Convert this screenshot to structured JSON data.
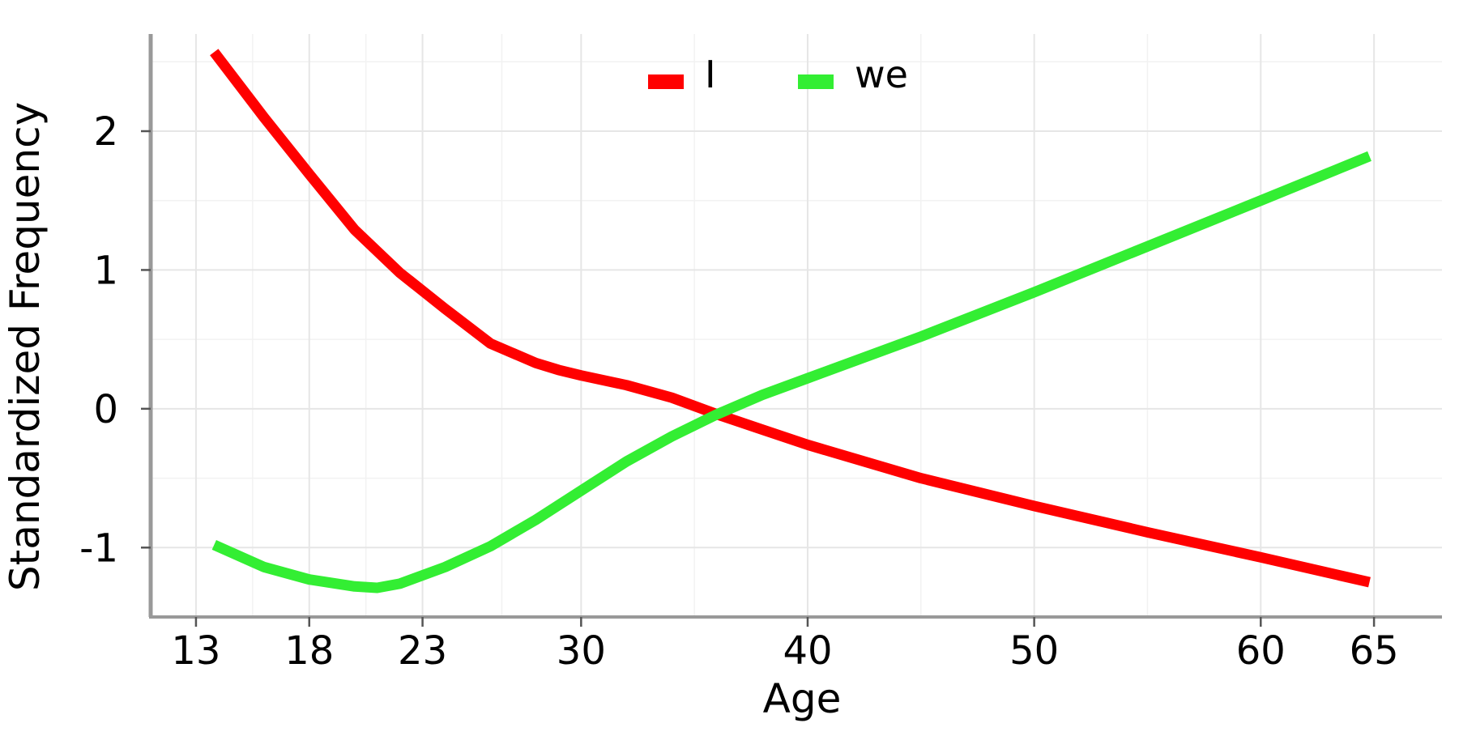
{
  "chart_data": {
    "type": "line",
    "title": "",
    "xlabel": "Age",
    "ylabel": "Standardized Frequency",
    "xlim": [
      11,
      68
    ],
    "ylim": [
      -1.5,
      2.7
    ],
    "x_ticks": [
      13,
      18,
      23,
      30,
      40,
      50,
      60,
      65
    ],
    "x_tick_labels": [
      "13",
      "18",
      "23",
      "30",
      "40",
      "50",
      "60",
      "65"
    ],
    "y_ticks": [
      2,
      1,
      0,
      -1
    ],
    "y_tick_labels": [
      "2",
      "1",
      "0",
      "-1"
    ],
    "x_minor_grid": [
      15.5,
      20.5,
      26.5,
      35,
      45,
      55
    ],
    "y_minor_grid": [
      2.5,
      1.5,
      0.5,
      -0.5
    ],
    "grid": true,
    "legend_position": "top-center",
    "series": [
      {
        "name": "I",
        "color": "#ff0000",
        "x": [
          13.8,
          16,
          18,
          20,
          22,
          24,
          26,
          28,
          29,
          30,
          32,
          34,
          36,
          38,
          40,
          45,
          50,
          55,
          60,
          64.8
        ],
        "y": [
          2.57,
          2.1,
          1.69,
          1.29,
          0.98,
          0.72,
          0.47,
          0.33,
          0.28,
          0.24,
          0.17,
          0.08,
          -0.04,
          -0.15,
          -0.26,
          -0.5,
          -0.7,
          -0.89,
          -1.07,
          -1.25
        ]
      },
      {
        "name": "we",
        "color": "#33ee33",
        "x": [
          13.8,
          16,
          18,
          20,
          21,
          22,
          24,
          26,
          28,
          30,
          32,
          34,
          36,
          38,
          40,
          45,
          50,
          55,
          60,
          64.8
        ],
        "y": [
          -0.98,
          -1.14,
          -1.23,
          -1.28,
          -1.29,
          -1.26,
          -1.14,
          -0.99,
          -0.8,
          -0.59,
          -0.38,
          -0.2,
          -0.04,
          0.1,
          0.22,
          0.52,
          0.84,
          1.17,
          1.5,
          1.82
        ]
      }
    ]
  }
}
